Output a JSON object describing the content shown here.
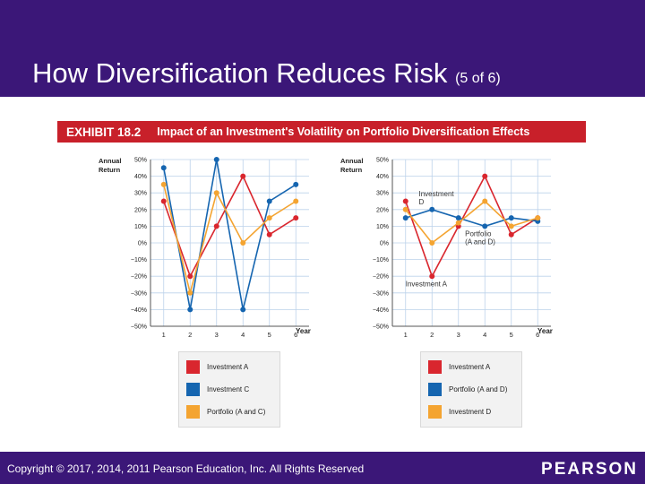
{
  "slide": {
    "title": "How Diversification Reduces Risk",
    "subtitle": "(5 of 6)",
    "exhibit_label": "EXHIBIT 18.2",
    "exhibit_caption": "Impact of an Investment's Volatility on Portfolio Diversification Effects",
    "copyright": "Copyright © 2017, 2014, 2011 Pearson Education, Inc. All Rights Reserved",
    "logo": "PEARSON"
  },
  "colors": {
    "header": "#3b1778",
    "red": "#d9262e",
    "blue": "#1565b0",
    "orange": "#f4a431"
  },
  "chart_data": [
    {
      "type": "line",
      "ylabel_line1": "Annual",
      "ylabel_line2": "Return",
      "xlabel": "Year",
      "x": [
        1,
        2,
        3,
        4,
        5,
        6
      ],
      "yticks": [
        50,
        40,
        30,
        20,
        10,
        0,
        -10,
        -20,
        -30,
        -40,
        -50
      ],
      "ytick_labels": [
        "50%",
        "40%",
        "30%",
        "20%",
        "10%",
        "0%",
        "−10%",
        "−20%",
        "−30%",
        "−40%",
        "−50%"
      ],
      "ylim": [
        -50,
        50
      ],
      "series": [
        {
          "name": "Investment A",
          "color": "#d9262e",
          "values": [
            25,
            -20,
            10,
            40,
            5,
            15
          ]
        },
        {
          "name": "Investment C",
          "color": "#1565b0",
          "values": [
            45,
            -40,
            50,
            -40,
            25,
            35
          ]
        },
        {
          "name": "Portfolio (A and C)",
          "color": "#f4a431",
          "values": [
            35,
            -30,
            30,
            0,
            15,
            25
          ]
        }
      ],
      "annotations": []
    },
    {
      "type": "line",
      "ylabel_line1": "Annual",
      "ylabel_line2": "Return",
      "xlabel": "Year",
      "x": [
        1,
        2,
        3,
        4,
        5,
        6
      ],
      "yticks": [
        50,
        40,
        30,
        20,
        10,
        0,
        -10,
        -20,
        -30,
        -40,
        -50
      ],
      "ytick_labels": [
        "50%",
        "40%",
        "30%",
        "20%",
        "10%",
        "0%",
        "−10%",
        "−20%",
        "−30%",
        "−40%",
        "−50%"
      ],
      "ylim": [
        -50,
        50
      ],
      "series": [
        {
          "name": "Investment A",
          "color": "#d9262e",
          "values": [
            25,
            -20,
            10,
            40,
            5,
            15
          ]
        },
        {
          "name": "Portfolio (A and D)",
          "color": "#1565b0",
          "values": [
            15,
            20,
            15,
            10,
            15,
            13
          ]
        },
        {
          "name": "Investment D",
          "color": "#f4a431",
          "values": [
            20,
            0,
            12,
            25,
            10,
            15
          ]
        }
      ],
      "annotations": [
        {
          "text_line1": "Investment",
          "text_line2": "D",
          "x": 1.5,
          "y": 28
        },
        {
          "text_line1": "Portfolio",
          "text_line2": "(A and D)",
          "x": 3.25,
          "y": 4
        },
        {
          "text_line1": "Investment A",
          "text_line2": "",
          "x": 1.0,
          "y": -26
        }
      ]
    }
  ],
  "legends": [
    [
      {
        "label": "Investment A",
        "color": "#d9262e"
      },
      {
        "label": "Investment C",
        "color": "#1565b0"
      },
      {
        "label": "Portfolio (A and C)",
        "color": "#f4a431"
      }
    ],
    [
      {
        "label": "Investment A",
        "color": "#d9262e"
      },
      {
        "label": "Portfolio (A and D)",
        "color": "#1565b0"
      },
      {
        "label": "Investment D",
        "color": "#f4a431"
      }
    ]
  ]
}
